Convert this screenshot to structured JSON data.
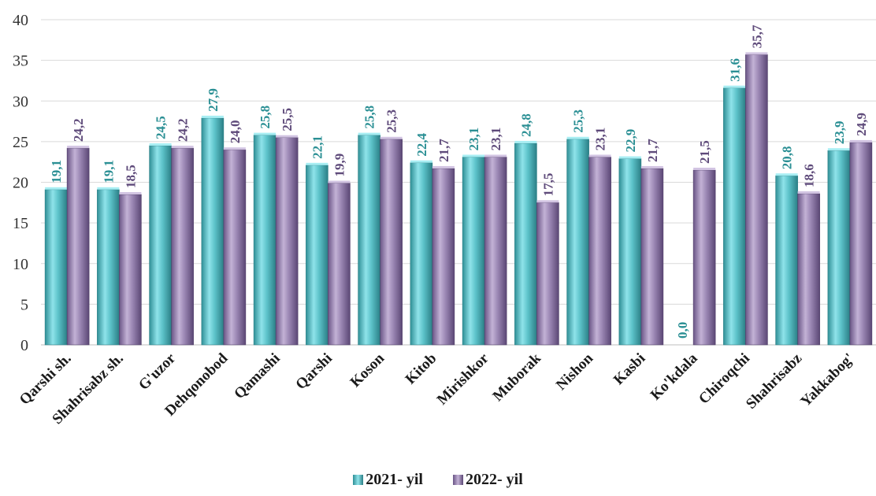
{
  "chart_data": {
    "type": "bar",
    "title": "",
    "xlabel": "",
    "ylabel": "",
    "ylim": [
      0,
      40
    ],
    "yticks": [
      0,
      5,
      10,
      15,
      20,
      25,
      30,
      35,
      40
    ],
    "grid": true,
    "legend_position": "bottom",
    "categories": [
      "Qarshi sh.",
      "Shahrisabz sh.",
      "G'uzor",
      "Dehqonobod",
      "Qamashi",
      "Qarshi",
      "Koson",
      "Kitob",
      "Mirishkor",
      "Muborak",
      "Nishon",
      "Kasbi",
      "Ko'kdala",
      "Chiroqchi",
      "Shahrisabz",
      "Yakkabog'"
    ],
    "series": [
      {
        "name": "2021- yil",
        "color": "#4bb5bd",
        "label_color": "#2a8f94",
        "values": [
          19.1,
          19.1,
          24.5,
          27.9,
          25.8,
          22.1,
          25.8,
          22.4,
          23.1,
          24.8,
          25.3,
          22.9,
          0.0,
          31.6,
          20.8,
          23.9
        ],
        "labels": [
          "19,1",
          "19,1",
          "24,5",
          "27,9",
          "25,8",
          "22,1",
          "25,8",
          "22,4",
          "23,1",
          "24,8",
          "25,3",
          "22,9",
          "0,0",
          "31,6",
          "20,8",
          "23,9"
        ]
      },
      {
        "name": "2022- yil",
        "color": "#8c76a6",
        "label_color": "#5e4a7a",
        "values": [
          24.2,
          18.5,
          24.2,
          24.0,
          25.5,
          19.9,
          25.3,
          21.7,
          23.1,
          17.5,
          23.1,
          21.7,
          21.5,
          35.7,
          18.6,
          24.9
        ],
        "labels": [
          "24,2",
          "18,5",
          "24,2",
          "24,0",
          "25,5",
          "19,9",
          "25,3",
          "21,7",
          "23,1",
          "17,5",
          "23,1",
          "21,7",
          "21,5",
          "35,7",
          "18,6",
          "24,9"
        ]
      }
    ]
  },
  "legend": {
    "items": [
      {
        "label": "2021- yil",
        "color": "#4bb5bd"
      },
      {
        "label": "2022- yil",
        "color": "#8c76a6"
      }
    ]
  }
}
